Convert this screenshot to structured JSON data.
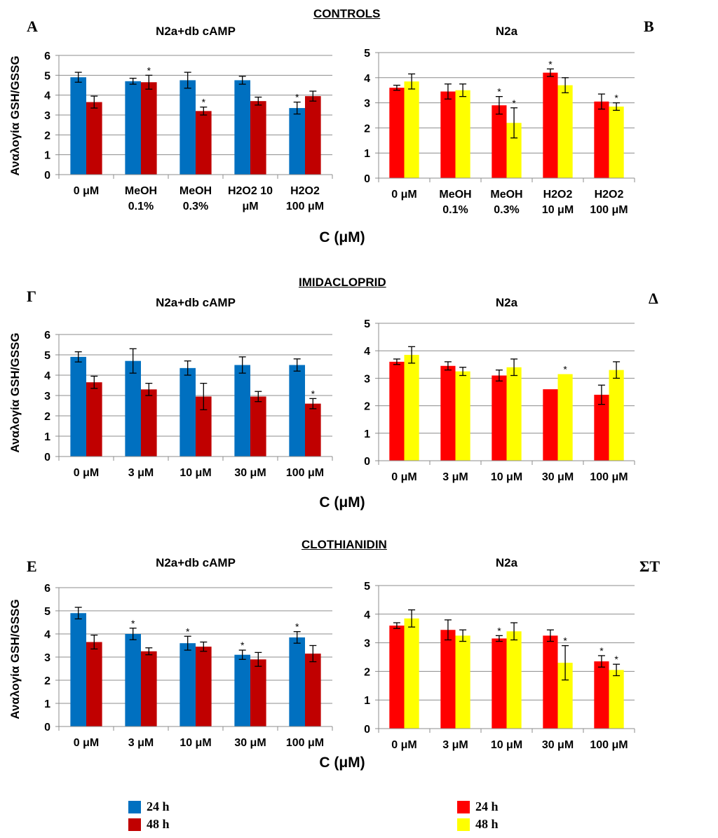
{
  "figure": {
    "section_titles": [
      "CONTROLS",
      "IMIDACLOPRID",
      "CLOTHIANIDIN"
    ],
    "panel_letters": [
      "A",
      "B",
      "Γ",
      "Δ",
      "E",
      "ΣΤ"
    ],
    "shared_xlabel": "C (μM)",
    "legends": [
      {
        "items": [
          {
            "label": "24 h",
            "color": "#0070C0"
          },
          {
            "label": "48 h",
            "color": "#C00000"
          }
        ]
      },
      {
        "items": [
          {
            "label": "24 h",
            "color": "#FF0000"
          },
          {
            "label": "48 h",
            "color": "#FFFF00"
          }
        ]
      }
    ]
  },
  "chart_data": [
    {
      "id": "A",
      "type": "bar",
      "title": "N2a+db cAMP",
      "ylabel": "Αναλογία GSH/GSSG",
      "xlabel": "",
      "ylim": [
        0,
        6
      ],
      "yticks": [
        0,
        1,
        2,
        3,
        4,
        5,
        6
      ],
      "grid": true,
      "categories": [
        [
          "0 μM"
        ],
        [
          "MeOH",
          "0.1%"
        ],
        [
          "MeOH",
          "0.3%"
        ],
        [
          "H2O2 10",
          "μM"
        ],
        [
          "H2O2",
          "100 μM"
        ]
      ],
      "series": [
        {
          "name": "24 h",
          "color": "#0070C0",
          "values": [
            4.9,
            4.7,
            4.75,
            4.75,
            3.35
          ],
          "errors": [
            0.25,
            0.15,
            0.4,
            0.2,
            0.3
          ],
          "sig": [
            false,
            false,
            false,
            false,
            true
          ]
        },
        {
          "name": "48 h",
          "color": "#C00000",
          "values": [
            3.65,
            4.65,
            3.2,
            3.7,
            3.95
          ],
          "errors": [
            0.3,
            0.35,
            0.2,
            0.2,
            0.25
          ],
          "sig": [
            false,
            true,
            true,
            false,
            false
          ]
        }
      ]
    },
    {
      "id": "B",
      "type": "bar",
      "title": "N2a",
      "ylabel": "",
      "xlabel": "",
      "ylim": [
        0,
        5
      ],
      "yticks": [
        0,
        1,
        2,
        3,
        4,
        5
      ],
      "grid": true,
      "categories": [
        [
          "0 μM"
        ],
        [
          "MeOH",
          "0.1%"
        ],
        [
          "MeOH",
          "0.3%"
        ],
        [
          "H2O2",
          "10 μM"
        ],
        [
          "H2O2",
          "100 μM"
        ]
      ],
      "series": [
        {
          "name": "24 h",
          "color": "#FF0000",
          "values": [
            3.6,
            3.45,
            2.9,
            4.2,
            3.05
          ],
          "errors": [
            0.1,
            0.3,
            0.35,
            0.15,
            0.3
          ],
          "sig": [
            false,
            false,
            true,
            true,
            false
          ]
        },
        {
          "name": "48 h",
          "color": "#FFFF00",
          "values": [
            3.85,
            3.5,
            2.2,
            3.7,
            2.85
          ],
          "errors": [
            0.3,
            0.25,
            0.6,
            0.3,
            0.15
          ],
          "sig": [
            false,
            false,
            true,
            false,
            true
          ]
        }
      ]
    },
    {
      "id": "Γ",
      "type": "bar",
      "title": "N2a+db cAMP",
      "ylabel": "Αναλογία GSH/GSSG",
      "xlabel": "",
      "ylim": [
        0,
        6
      ],
      "yticks": [
        0,
        1,
        2,
        3,
        4,
        5,
        6
      ],
      "grid": true,
      "categories": [
        [
          "0 μM"
        ],
        [
          "3 μM"
        ],
        [
          "10 μM"
        ],
        [
          "30 μM"
        ],
        [
          "100 μM"
        ]
      ],
      "series": [
        {
          "name": "24 h",
          "color": "#0070C0",
          "values": [
            4.9,
            4.7,
            4.35,
            4.5,
            4.5
          ],
          "errors": [
            0.25,
            0.6,
            0.35,
            0.4,
            0.3
          ],
          "sig": [
            false,
            false,
            false,
            false,
            false
          ]
        },
        {
          "name": "48 h",
          "color": "#C00000",
          "values": [
            3.65,
            3.3,
            2.95,
            2.95,
            2.6
          ],
          "errors": [
            0.3,
            0.3,
            0.65,
            0.25,
            0.25
          ],
          "sig": [
            false,
            false,
            false,
            false,
            true
          ]
        }
      ]
    },
    {
      "id": "Δ",
      "type": "bar",
      "title": "N2a",
      "ylabel": "",
      "xlabel": "",
      "ylim": [
        0,
        5
      ],
      "yticks": [
        0,
        1,
        2,
        3,
        4,
        5
      ],
      "grid": true,
      "categories": [
        [
          "0 μM"
        ],
        [
          "3 μM"
        ],
        [
          "10 μM"
        ],
        [
          "30 μM"
        ],
        [
          "100 μM"
        ]
      ],
      "series": [
        {
          "name": "24 h",
          "color": "#FF0000",
          "values": [
            3.6,
            3.45,
            3.1,
            2.6,
            2.4
          ],
          "errors": [
            0.1,
            0.15,
            0.2,
            0.0,
            0.35
          ],
          "sig": [
            false,
            false,
            false,
            false,
            false
          ]
        },
        {
          "name": "48 h",
          "color": "#FFFF00",
          "values": [
            3.85,
            3.25,
            3.4,
            3.15,
            3.3
          ],
          "errors": [
            0.3,
            0.15,
            0.3,
            0.0,
            0.3
          ],
          "sig": [
            false,
            false,
            false,
            true,
            false
          ]
        }
      ]
    },
    {
      "id": "E",
      "type": "bar",
      "title": "N2a+db cAMP",
      "ylabel": "Αναλογία GSH/GSSG",
      "xlabel": "",
      "ylim": [
        0,
        6
      ],
      "yticks": [
        0,
        1,
        2,
        3,
        4,
        5,
        6
      ],
      "grid": true,
      "categories": [
        [
          "0 μM"
        ],
        [
          "3 μM"
        ],
        [
          "10 μM"
        ],
        [
          "30 μM"
        ],
        [
          "100 μM"
        ]
      ],
      "series": [
        {
          "name": "24 h",
          "color": "#0070C0",
          "values": [
            4.9,
            4.0,
            3.6,
            3.1,
            3.85
          ],
          "errors": [
            0.25,
            0.25,
            0.3,
            0.2,
            0.25
          ],
          "sig": [
            false,
            true,
            true,
            true,
            true
          ]
        },
        {
          "name": "48 h",
          "color": "#C00000",
          "values": [
            3.65,
            3.25,
            3.45,
            2.9,
            3.15
          ],
          "errors": [
            0.3,
            0.15,
            0.2,
            0.3,
            0.35
          ],
          "sig": [
            false,
            false,
            false,
            false,
            false
          ]
        }
      ]
    },
    {
      "id": "ΣΤ",
      "type": "bar",
      "title": "N2a",
      "ylabel": "",
      "xlabel": "",
      "ylim": [
        0,
        5
      ],
      "yticks": [
        0,
        1,
        2,
        3,
        4,
        5
      ],
      "grid": true,
      "categories": [
        [
          "0 μM"
        ],
        [
          "3 μM"
        ],
        [
          "10 μM"
        ],
        [
          "30 μM"
        ],
        [
          "100 μM"
        ]
      ],
      "series": [
        {
          "name": "24 h",
          "color": "#FF0000",
          "values": [
            3.6,
            3.45,
            3.15,
            3.25,
            2.35
          ],
          "errors": [
            0.1,
            0.35,
            0.1,
            0.2,
            0.2
          ],
          "sig": [
            false,
            false,
            true,
            false,
            true
          ]
        },
        {
          "name": "48 h",
          "color": "#FFFF00",
          "values": [
            3.85,
            3.25,
            3.4,
            2.3,
            2.05
          ],
          "errors": [
            0.3,
            0.2,
            0.3,
            0.6,
            0.2
          ],
          "sig": [
            false,
            false,
            false,
            true,
            true
          ]
        }
      ]
    }
  ]
}
